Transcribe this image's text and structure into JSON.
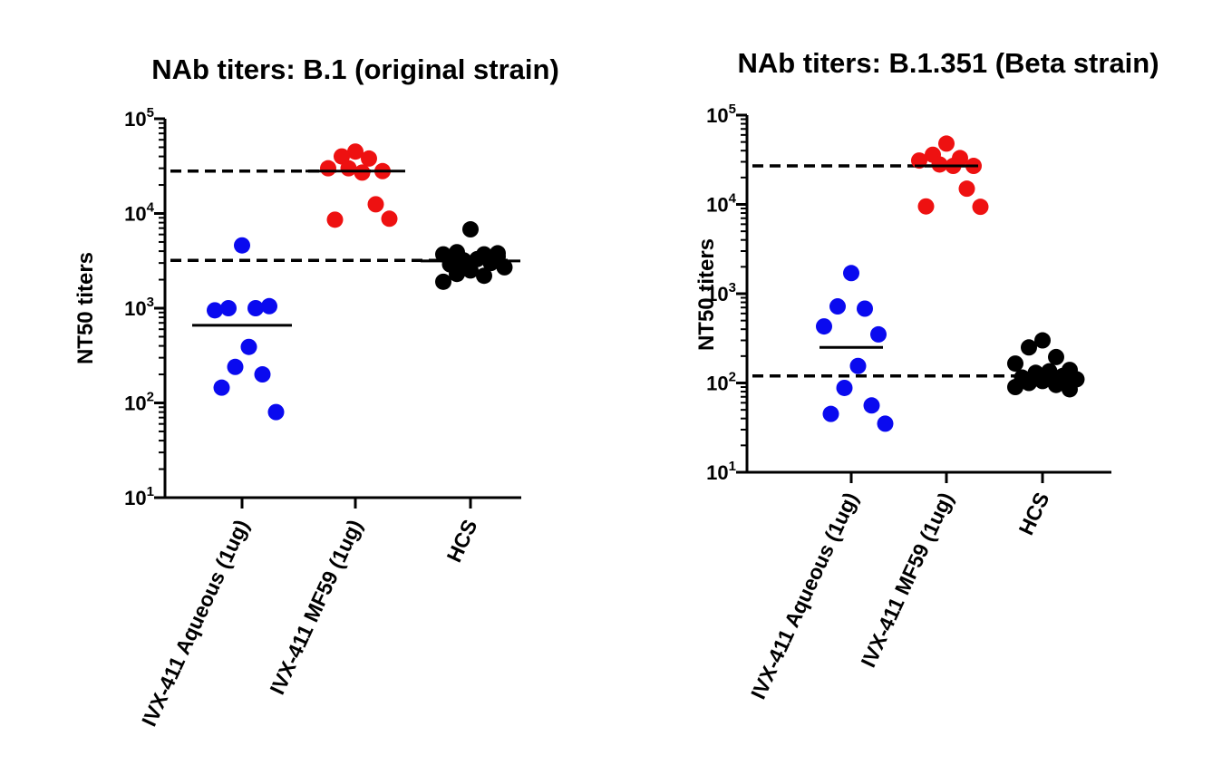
{
  "chart_data": [
    {
      "type": "scatter",
      "title": "NAb titers: B.1 (original strain)",
      "ylabel": "NT50 titers",
      "yscale": "log",
      "ylim": [
        10,
        100000
      ],
      "ytick_labels": [
        {
          "base": "10",
          "exp": "1"
        },
        {
          "base": "10",
          "exp": "2"
        },
        {
          "base": "10",
          "exp": "3"
        },
        {
          "base": "10",
          "exp": "4"
        },
        {
          "base": "10",
          "exp": "5"
        }
      ],
      "categories": [
        "IVX-411 Aqueous (1ug)",
        "IVX-411 MF59 (1ug)",
        "HCS"
      ],
      "series": [
        {
          "name": "IVX-411 Aqueous (1ug)",
          "color": "#0a0aef",
          "values": [
            4600,
            1000,
            1000,
            950,
            1050,
            390,
            240,
            200,
            145,
            80
          ],
          "median": 660
        },
        {
          "name": "IVX-411 MF59 (1ug)",
          "color": "#ee1111",
          "values": [
            45000,
            40000,
            38000,
            30000,
            28000,
            27000,
            30000,
            12500,
            8600,
            8800
          ],
          "median": 28000
        },
        {
          "name": "HCS",
          "color": "#000000",
          "values": [
            6800,
            3900,
            3700,
            3700,
            3500,
            3300,
            3200,
            3000,
            2900,
            2700,
            2500,
            2300,
            2200,
            1900,
            3800
          ],
          "median": 3150
        }
      ],
      "reference_lines": [
        28000,
        3200
      ]
    },
    {
      "type": "scatter",
      "title": "NAb titers: B.1.351 (Beta strain)",
      "ylabel": "NT50 titers",
      "yscale": "log",
      "ylim": [
        10,
        100000
      ],
      "ytick_labels": [
        {
          "base": "10",
          "exp": "1"
        },
        {
          "base": "10",
          "exp": "2"
        },
        {
          "base": "10",
          "exp": "3"
        },
        {
          "base": "10",
          "exp": "4"
        },
        {
          "base": "10",
          "exp": "5"
        }
      ],
      "categories": [
        "IVX-411 Aqueous (1ug)",
        "IVX-411 MF59 (1ug)",
        "HCS"
      ],
      "series": [
        {
          "name": "IVX-411 Aqueous (1ug)",
          "color": "#0a0aef",
          "values": [
            1700,
            720,
            680,
            430,
            350,
            155,
            88,
            56,
            45,
            35
          ],
          "median": 250
        },
        {
          "name": "IVX-411 MF59 (1ug)",
          "color": "#ee1111",
          "values": [
            48000,
            36000,
            33000,
            31000,
            27000,
            27000,
            28000,
            15000,
            9500,
            9400
          ],
          "median": 27000
        },
        {
          "name": "HCS",
          "color": "#000000",
          "values": [
            300,
            250,
            195,
            165,
            140,
            135,
            130,
            120,
            115,
            110,
            105,
            100,
            95,
            90,
            85
          ],
          "median": 120
        }
      ],
      "reference_lines": [
        27000,
        120
      ]
    }
  ]
}
